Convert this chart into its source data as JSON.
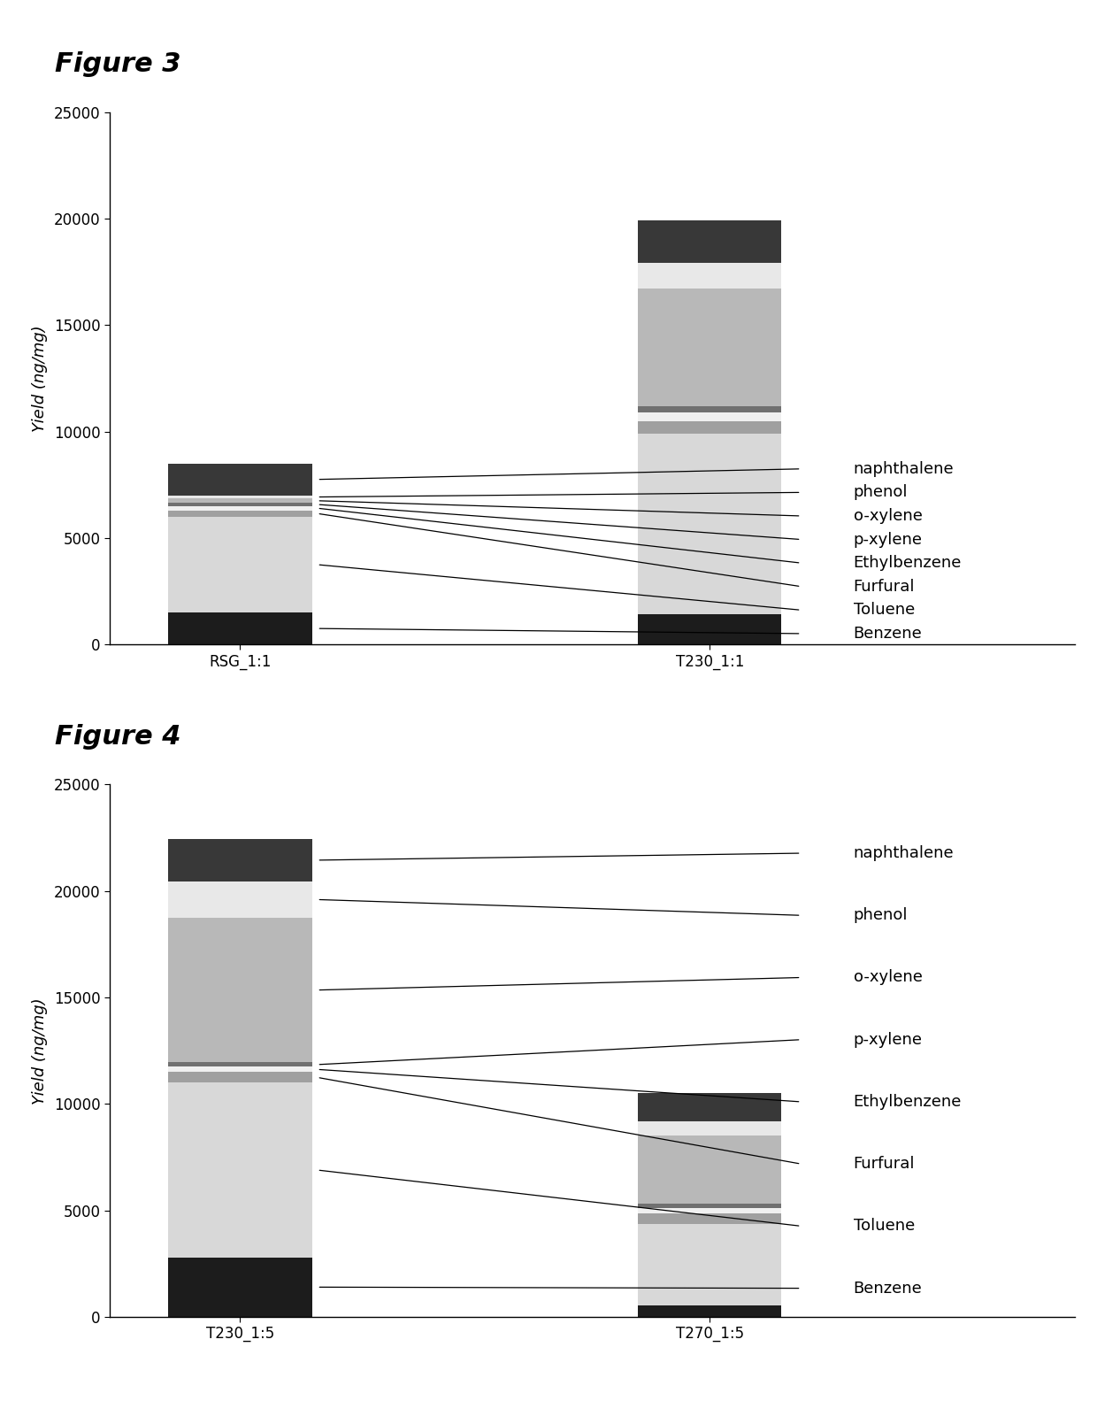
{
  "fig3": {
    "title": "Figure 3",
    "categories": [
      "RSG_1:1",
      "T230_1:1"
    ],
    "ylabel": "Yield (ng/mg)",
    "ylim": [
      0,
      25000
    ],
    "yticks": [
      0,
      5000,
      10000,
      15000,
      20000,
      25000
    ],
    "compounds": [
      "Benzene",
      "Toluene",
      "Furfural",
      "Ethylbenzene",
      "p-xylene",
      "o-xylene",
      "phenol",
      "naphthalene"
    ],
    "colors": [
      "#1c1c1c",
      "#d8d8d8",
      "#a0a0a0",
      "#f0f0f0",
      "#707070",
      "#b8b8b8",
      "#e8e8e8",
      "#383838"
    ],
    "values_bar1": [
      1500,
      4500,
      300,
      200,
      150,
      200,
      150,
      1500
    ],
    "values_bar2": [
      1400,
      8500,
      600,
      400,
      300,
      5500,
      1200,
      2000
    ],
    "legend_labels": [
      "naphthalene",
      "phenol",
      "o-xylene",
      "p-xylene",
      "Ethylbenzene",
      "Furfural",
      "Toluene",
      "Benzene"
    ],
    "compound_indices_for_legend": [
      7,
      6,
      5,
      4,
      3,
      2,
      1,
      0
    ]
  },
  "fig4": {
    "title": "Figure 4",
    "categories": [
      "T230_1:5",
      "T270_1:5"
    ],
    "ylabel": "Yield (ng/mg)",
    "ylim": [
      0,
      25000
    ],
    "yticks": [
      0,
      5000,
      10000,
      15000,
      20000,
      25000
    ],
    "compounds": [
      "Benzene",
      "Toluene",
      "Furfural",
      "Ethylbenzene",
      "p-xylene",
      "o-xylene",
      "phenol",
      "naphthalene"
    ],
    "colors": [
      "#1c1c1c",
      "#d8d8d8",
      "#a0a0a0",
      "#f0f0f0",
      "#707070",
      "#b8b8b8",
      "#e8e8e8",
      "#383838"
    ],
    "values_bar1": [
      2800,
      8200,
      500,
      250,
      200,
      6800,
      1700,
      2000
    ],
    "values_bar2": [
      550,
      3800,
      500,
      250,
      200,
      3200,
      700,
      1300
    ],
    "legend_labels": [
      "naphthalene",
      "phenol",
      "o-xylene",
      "p-xylene",
      "Ethylbenzene",
      "Furfural",
      "Toluene",
      "Benzene"
    ],
    "compound_indices_for_legend": [
      7,
      6,
      5,
      4,
      3,
      2,
      1,
      0
    ]
  },
  "background_color": "#ffffff",
  "bar_width": 0.55,
  "figure_label_fontsize": 22,
  "axis_label_fontsize": 13,
  "tick_fontsize": 12,
  "annotation_fontsize": 13
}
